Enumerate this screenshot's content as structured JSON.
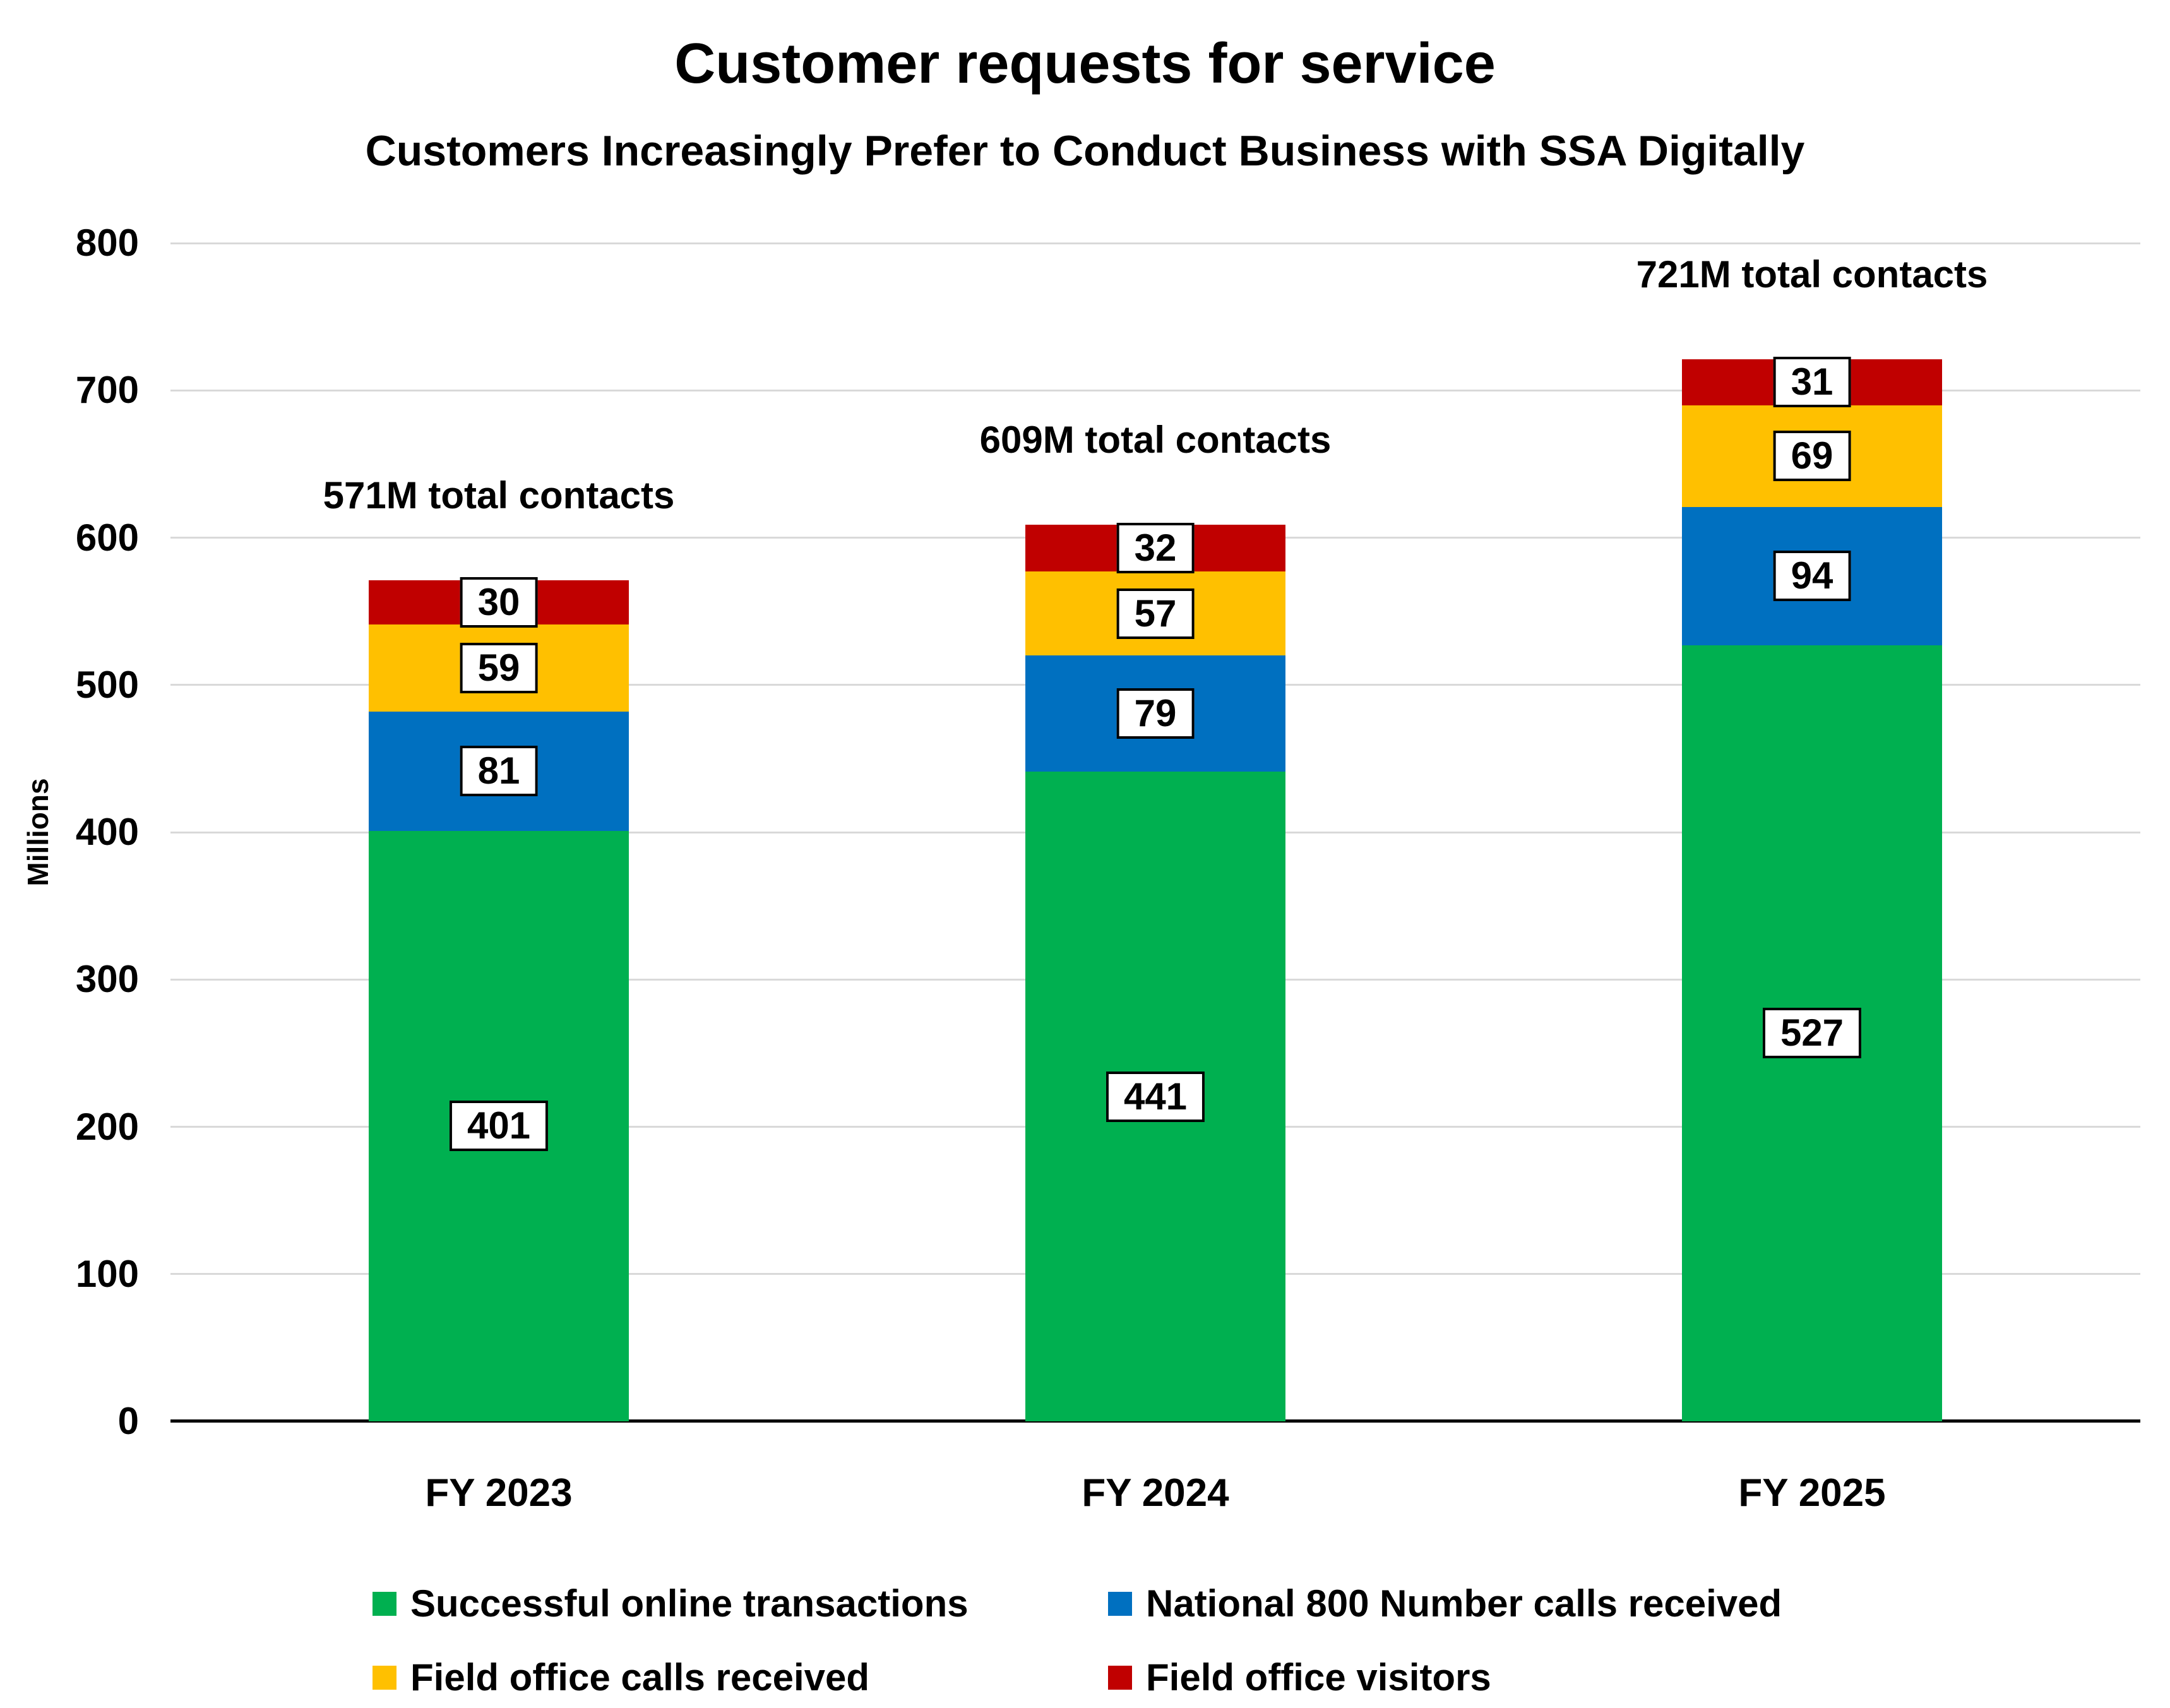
{
  "title": "Customer requests for service",
  "subtitle": "Customers Increasingly Prefer to Conduct Business with SSA Digitally",
  "chart_data": {
    "type": "bar",
    "stacked": true,
    "title": "Customer requests for service",
    "subtitle": "Customers Increasingly Prefer to Conduct Business with SSA Digitally",
    "categories": [
      "FY 2023",
      "FY 2024",
      "FY 2025"
    ],
    "series": [
      {
        "name": "Successful online transactions",
        "color": "#00B050",
        "values": [
          401,
          441,
          527
        ]
      },
      {
        "name": "National 800 Number calls received",
        "color": "#0070C0",
        "values": [
          81,
          79,
          94
        ]
      },
      {
        "name": "Field office calls received",
        "color": "#FFC000",
        "values": [
          59,
          57,
          69
        ]
      },
      {
        "name": "Field office visitors",
        "color": "#C00000",
        "values": [
          30,
          32,
          31
        ]
      }
    ],
    "totals": [
      "571M total contacts",
      "609M total contacts",
      "721M total contacts"
    ],
    "xlabel": "",
    "ylabel": "Millions",
    "ylim": [
      0,
      800
    ],
    "ytick_step": 100,
    "grid": true,
    "legend_position": "bottom"
  }
}
